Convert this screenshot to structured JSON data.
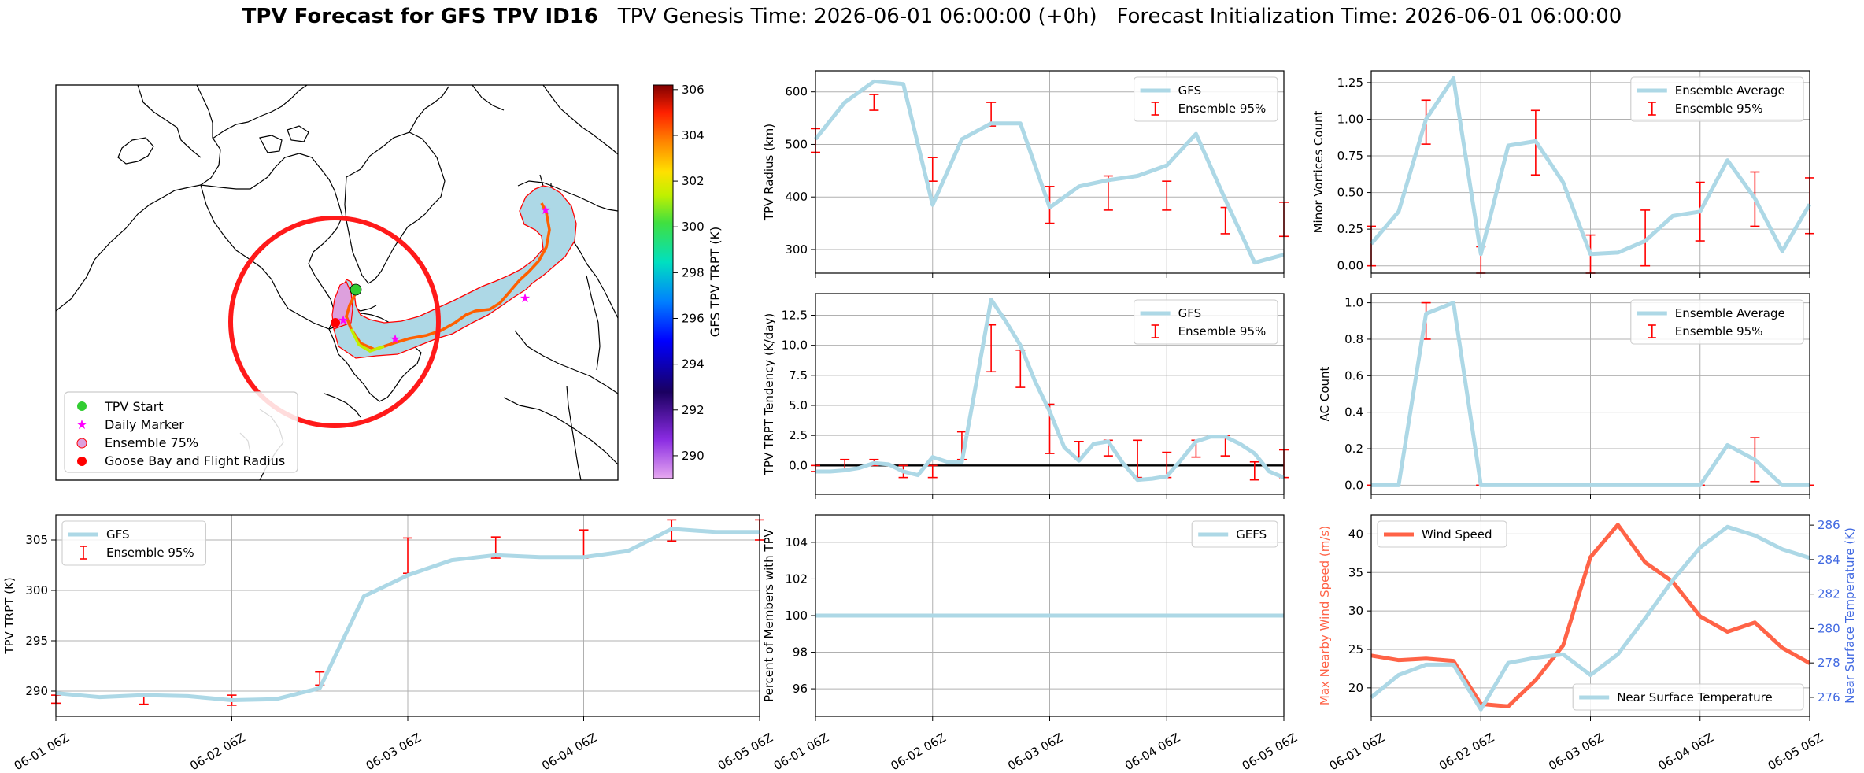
{
  "title": {
    "bold": "TPV Forecast for GFS TPV ID16",
    "genesis": "TPV Genesis Time: 2026-06-01 06:00:00 (+0h)",
    "init": "Forecast Initialization Time: 2026-06-01 06:00:00"
  },
  "x_tick_labels": [
    "06-01 06Z",
    "06-02 06Z",
    "06-03 06Z",
    "06-04 06Z",
    "06-05 06Z"
  ],
  "colors": {
    "gfs_line": "#add8e6",
    "ensemble_err": "#ff0000",
    "wind_line": "#ff6347",
    "temp_axis": "#4169e1",
    "flight_circle": "#ff0000",
    "track_start": "#32cd32",
    "daily_marker": "#ff00ff"
  },
  "map": {
    "legend": [
      "TPV Start",
      "Daily Marker",
      "Ensemble 75%",
      "Goose Bay and Flight Radius"
    ],
    "colorbar": {
      "label": "GFS TPV TRPT (K)",
      "min": 289,
      "max": 306.2,
      "ticks": [
        290,
        292,
        294,
        296,
        298,
        300,
        302,
        304,
        306
      ]
    }
  },
  "chart_data": [
    {
      "type": "line",
      "ylabel": "TPV Radius (km)",
      "ylim": [
        255,
        640
      ],
      "yticks": [
        300,
        400,
        500,
        600
      ],
      "legend": [
        "GFS",
        "Ensemble 95%"
      ],
      "legend_position": "top-right",
      "grid": true,
      "x_hours": [
        0,
        6,
        12,
        18,
        24,
        30,
        36,
        42,
        48,
        54,
        60,
        66,
        72,
        78,
        84,
        90,
        96
      ],
      "series": [
        {
          "name": "GFS",
          "values": [
            510,
            580,
            620,
            615,
            385,
            510,
            540,
            540,
            380,
            420,
            432,
            440,
            460,
            520,
            395,
            275,
            290
          ]
        }
      ],
      "errorbars": {
        "x_hours": [
          0,
          12,
          24,
          36,
          48,
          60,
          72,
          84,
          96
        ],
        "low": [
          485,
          565,
          430,
          535,
          350,
          375,
          375,
          330,
          325
        ],
        "high": [
          530,
          595,
          475,
          580,
          420,
          440,
          430,
          380,
          390
        ]
      }
    },
    {
      "type": "line",
      "ylabel": "Minor Vortices Count",
      "ylim": [
        -0.05,
        1.33
      ],
      "yticks": [
        0.0,
        0.25,
        0.5,
        0.75,
        1.0,
        1.25
      ],
      "legend": [
        "Ensemble Average",
        "Ensemble 95%"
      ],
      "legend_position": "top-right",
      "grid": true,
      "x_hours": [
        0,
        6,
        12,
        18,
        24,
        30,
        36,
        42,
        48,
        54,
        60,
        66,
        72,
        78,
        84,
        90,
        96
      ],
      "series": [
        {
          "name": "Ensemble Average",
          "values": [
            0.15,
            0.37,
            1.0,
            1.28,
            0.08,
            0.82,
            0.85,
            0.57,
            0.08,
            0.09,
            0.17,
            0.34,
            0.37,
            0.72,
            0.46,
            0.1,
            0.42
          ]
        }
      ],
      "errorbars": {
        "x_hours": [
          0,
          12,
          24,
          36,
          48,
          60,
          72,
          84,
          96
        ],
        "low": [
          0.0,
          0.83,
          -0.05,
          0.62,
          -0.05,
          0.0,
          0.17,
          0.27,
          0.22
        ],
        "high": [
          0.27,
          1.13,
          0.13,
          1.06,
          0.21,
          0.38,
          0.57,
          0.64,
          0.6
        ]
      }
    },
    {
      "type": "line",
      "ylabel": "TPV TRPT Tendency (K/day)",
      "ylim": [
        -2.4,
        14.3
      ],
      "yticks": [
        0.0,
        2.5,
        5.0,
        7.5,
        10.0,
        12.5
      ],
      "legend": [
        "GFS",
        "Ensemble 95%"
      ],
      "legend_position": "top-right",
      "grid": true,
      "zero_line": true,
      "x_hours": [
        0,
        3,
        6,
        9,
        12,
        15,
        18,
        21,
        24,
        27,
        30,
        33,
        36,
        39,
        42,
        45,
        48,
        51,
        54,
        57,
        60,
        63,
        66,
        69,
        72,
        75,
        78,
        81,
        84,
        87,
        90,
        93,
        96
      ],
      "series": [
        {
          "name": "GFS",
          "values": [
            -0.5,
            -0.5,
            -0.4,
            -0.2,
            0.2,
            0.1,
            -0.5,
            -0.8,
            0.7,
            0.3,
            0.3,
            7.0,
            13.8,
            12.0,
            10.0,
            7.0,
            4.5,
            1.5,
            0.4,
            1.8,
            2.0,
            0.2,
            -1.2,
            -1.1,
            -0.9,
            0.5,
            2.0,
            2.4,
            2.4,
            1.8,
            1.0,
            -0.5,
            -1.0
          ]
        }
      ],
      "errorbars": {
        "x_hours": [
          0,
          6,
          12,
          18,
          24,
          30,
          36,
          42,
          48,
          54,
          60,
          66,
          72,
          78,
          84,
          90,
          96
        ],
        "low": [
          -0.5,
          -0.5,
          0.0,
          -1.0,
          -1.0,
          0.5,
          7.8,
          6.5,
          1.0,
          0.7,
          0.8,
          -1.0,
          -1.0,
          0.7,
          0.8,
          -1.2,
          -1.0
        ],
        "high": [
          0.0,
          0.5,
          0.5,
          0.0,
          0.0,
          2.8,
          11.7,
          9.6,
          5.1,
          2.0,
          2.1,
          2.1,
          1.1,
          2.1,
          2.5,
          0.3,
          1.3
        ]
      }
    },
    {
      "type": "line",
      "ylabel": "AC Count",
      "ylim": [
        -0.05,
        1.05
      ],
      "yticks": [
        0.0,
        0.2,
        0.4,
        0.6,
        0.8,
        1.0
      ],
      "legend": [
        "Ensemble Average",
        "Ensemble 95%"
      ],
      "legend_position": "top-right",
      "grid": true,
      "x_hours": [
        0,
        6,
        12,
        18,
        24,
        30,
        36,
        42,
        48,
        54,
        60,
        66,
        72,
        78,
        84,
        90,
        96
      ],
      "series": [
        {
          "name": "Ensemble Average",
          "values": [
            0,
            0,
            0.94,
            1.0,
            0,
            0,
            0,
            0,
            0,
            0,
            0,
            0,
            0,
            0.22,
            0.14,
            0,
            0
          ]
        }
      ],
      "errorbars": {
        "x_hours": [
          0,
          12,
          24,
          36,
          48,
          60,
          72,
          84,
          96
        ],
        "low": [
          0,
          0.8,
          0,
          0,
          0,
          0,
          0,
          0.02,
          0
        ],
        "high": [
          0,
          1.0,
          0,
          0,
          0,
          0,
          0,
          0.26,
          0
        ]
      }
    },
    {
      "type": "line",
      "ylabel": "TPV TRPT (K)",
      "ylim": [
        287.5,
        307.5
      ],
      "yticks": [
        290,
        295,
        300,
        305
      ],
      "legend": [
        "GFS",
        "Ensemble 95%"
      ],
      "legend_position": "top-left",
      "grid": true,
      "x_hours": [
        0,
        6,
        12,
        18,
        24,
        30,
        36,
        42,
        48,
        54,
        60,
        66,
        72,
        78,
        84,
        90,
        96
      ],
      "series": [
        {
          "name": "GFS",
          "values": [
            289.8,
            289.4,
            289.6,
            289.5,
            289.1,
            289.2,
            290.3,
            299.4,
            301.5,
            303.0,
            303.5,
            303.3,
            303.3,
            303.9,
            306.1,
            305.8,
            305.8
          ]
        }
      ],
      "errorbars": {
        "x_hours": [
          0,
          12,
          24,
          36,
          48,
          60,
          72,
          84,
          96
        ],
        "low": [
          288.8,
          288.7,
          288.6,
          290.6,
          301.7,
          303.2,
          303.2,
          304.9,
          305.0
        ],
        "high": [
          289.6,
          289.5,
          289.6,
          291.9,
          305.2,
          305.3,
          306.0,
          307.0,
          307.0
        ]
      }
    },
    {
      "type": "line",
      "ylabel": "Percent of Members with TPV",
      "ylim": [
        94.5,
        105.5
      ],
      "yticks": [
        96,
        98,
        100,
        102,
        104
      ],
      "legend": [
        "GEFS"
      ],
      "legend_position": "top-right",
      "grid": true,
      "x_hours": [
        0,
        96
      ],
      "series": [
        {
          "name": "GEFS",
          "values": [
            100,
            100
          ]
        }
      ]
    },
    {
      "type": "line",
      "ylabel": "Max Nearby Wind Speed (m/s)",
      "ylabel_right": "Near Surface Temperature (K)",
      "ylim": [
        16.3,
        42.5
      ],
      "yticks": [
        20,
        25,
        30,
        35,
        40
      ],
      "ylim_right": [
        274.9,
        286.6
      ],
      "yticks_right": [
        276,
        278,
        280,
        282,
        284,
        286
      ],
      "legend": [
        "Wind Speed",
        "Near Surface Temperature"
      ],
      "grid": true,
      "x_hours": [
        0,
        6,
        12,
        18,
        24,
        30,
        36,
        42,
        48,
        54,
        60,
        66,
        72,
        78,
        84,
        90,
        96
      ],
      "series": [
        {
          "name": "Wind Speed",
          "axis": "left",
          "values": [
            24.2,
            23.6,
            23.8,
            23.5,
            17.9,
            17.6,
            21.0,
            25.5,
            37.0,
            41.2,
            36.3,
            33.8,
            29.3,
            27.3,
            28.5,
            25.2,
            23.2
          ]
        },
        {
          "name": "Near Surface Temperature",
          "axis": "right",
          "values": [
            276.0,
            277.3,
            277.9,
            277.9,
            275.3,
            278.0,
            278.3,
            278.5,
            277.3,
            278.5,
            280.6,
            282.8,
            284.7,
            285.9,
            285.4,
            284.6,
            284.1
          ]
        }
      ]
    }
  ]
}
